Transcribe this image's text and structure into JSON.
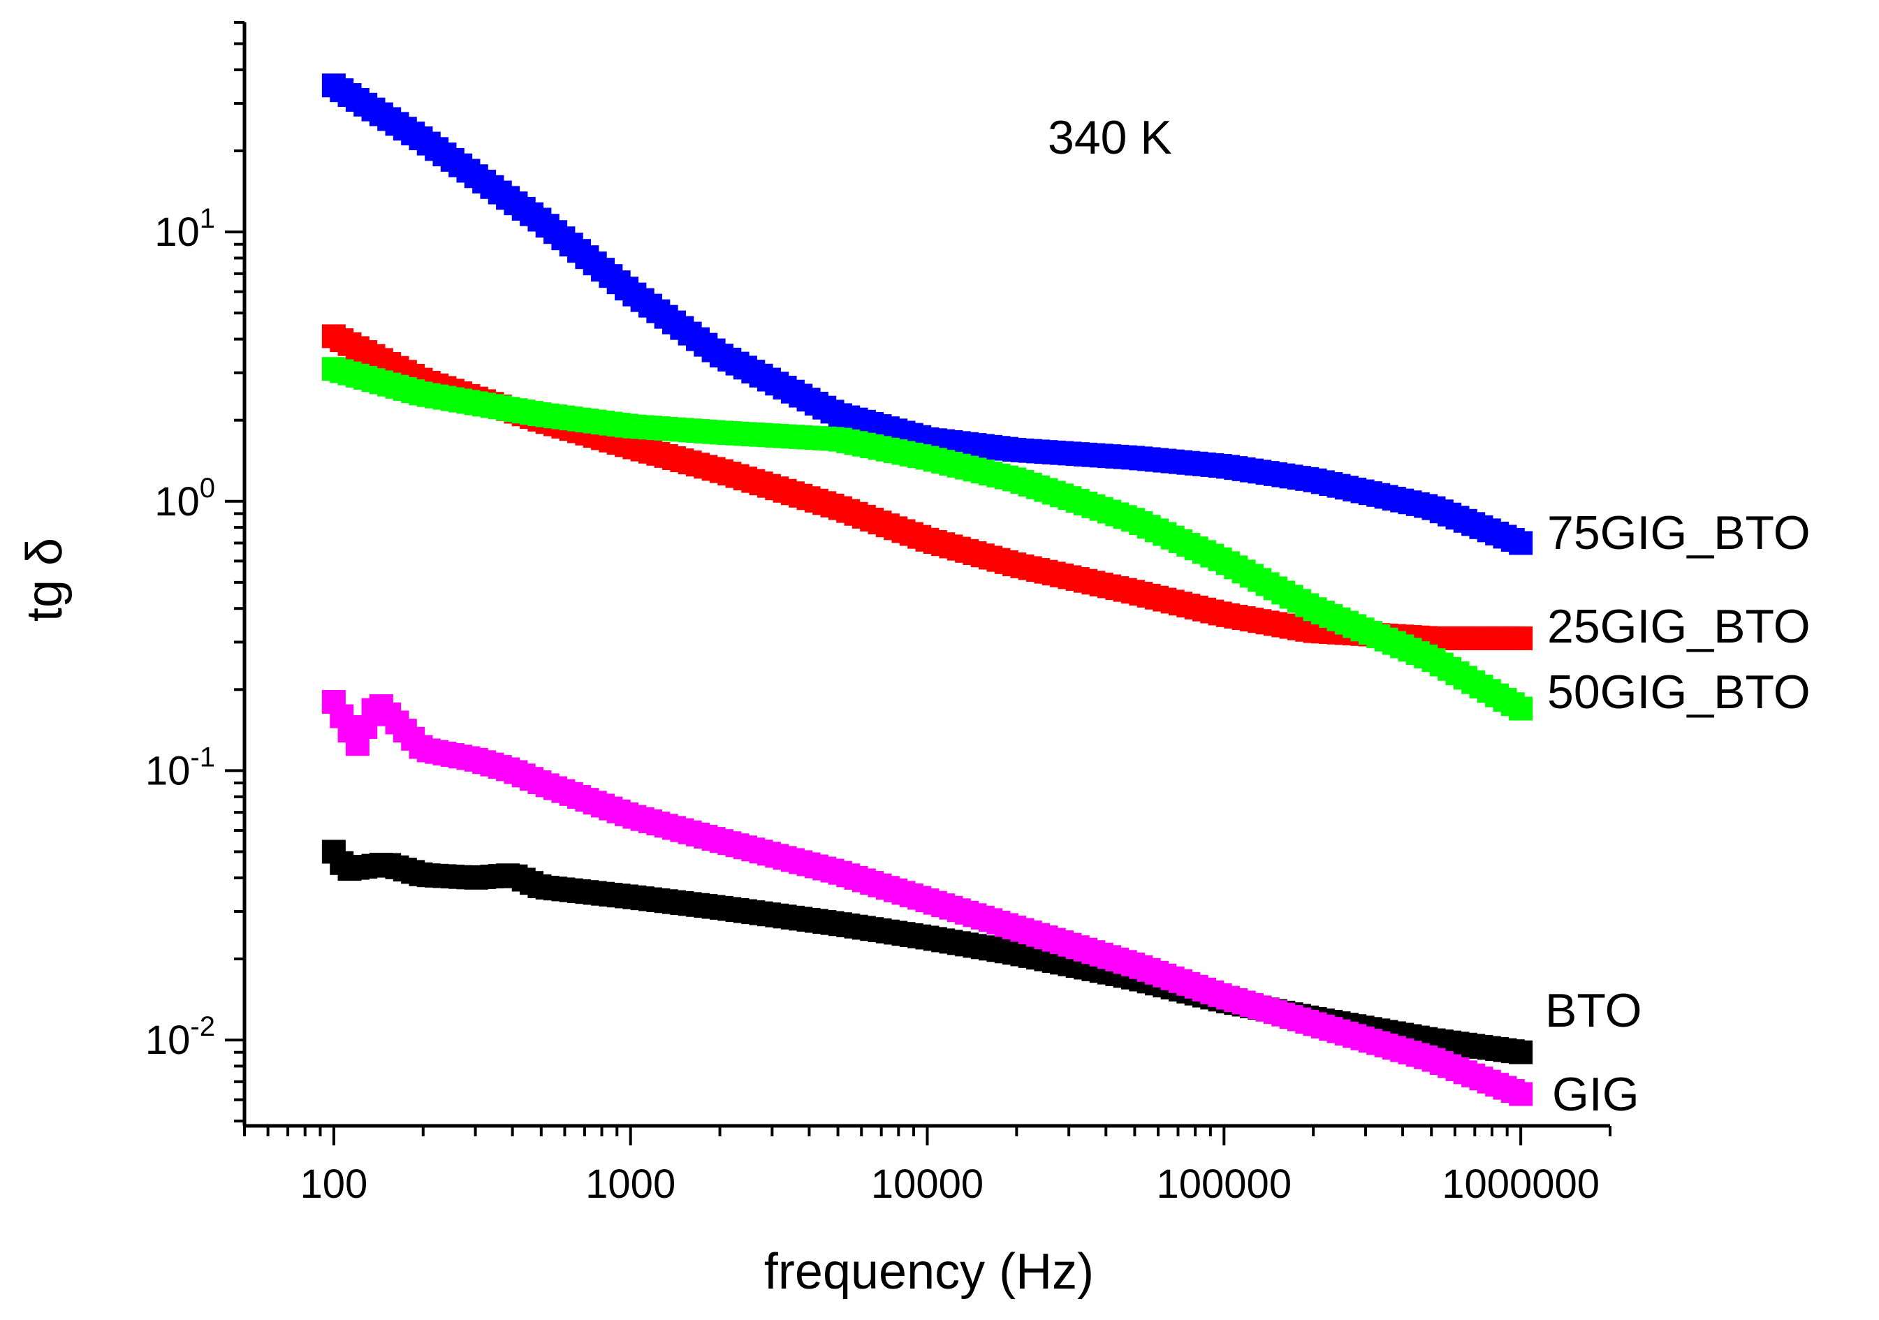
{
  "chart_data": {
    "type": "scatter",
    "title": "",
    "annotation": "340 K",
    "xlabel": "frequency (Hz)",
    "ylabel": "tg δ",
    "x_scale": "log",
    "y_scale": "log",
    "xlim": [
      50,
      2000000
    ],
    "ylim": [
      0.0048,
      60
    ],
    "grid": false,
    "legend": "none (series labelled at right end)",
    "x_ticks": [
      {
        "value": 100,
        "label": "100"
      },
      {
        "value": 1000,
        "label": "1000"
      },
      {
        "value": 10000,
        "label": "10000"
      },
      {
        "value": 100000,
        "label": "100000"
      },
      {
        "value": 1000000,
        "label": "1000000"
      }
    ],
    "y_ticks": [
      {
        "value": 0.01,
        "base": "10",
        "exp": "-2"
      },
      {
        "value": 0.1,
        "base": "10",
        "exp": "-1"
      },
      {
        "value": 1,
        "base": "10",
        "exp": "0"
      },
      {
        "value": 10,
        "base": "10",
        "exp": "1"
      }
    ],
    "series": [
      {
        "name": "75GIG_BTO",
        "label": "75GIG_BTO",
        "color": "#0000ff",
        "points": [
          [
            100,
            35
          ],
          [
            200,
            22
          ],
          [
            500,
            11
          ],
          [
            1000,
            6
          ],
          [
            2000,
            3.5
          ],
          [
            5000,
            2.1
          ],
          [
            10000,
            1.7
          ],
          [
            20000,
            1.55
          ],
          [
            50000,
            1.45
          ],
          [
            100000,
            1.35
          ],
          [
            200000,
            1.2
          ],
          [
            500000,
            0.95
          ],
          [
            1000000,
            0.7
          ]
        ]
      },
      {
        "name": "25GIG_BTO",
        "label": "25GIG_BTO",
        "color": "#ff0000",
        "points": [
          [
            100,
            4.1
          ],
          [
            200,
            2.8
          ],
          [
            500,
            2.0
          ],
          [
            1000,
            1.6
          ],
          [
            2000,
            1.3
          ],
          [
            5000,
            0.95
          ],
          [
            10000,
            0.72
          ],
          [
            20000,
            0.58
          ],
          [
            50000,
            0.46
          ],
          [
            100000,
            0.38
          ],
          [
            200000,
            0.33
          ],
          [
            500000,
            0.31
          ],
          [
            1000000,
            0.31
          ]
        ]
      },
      {
        "name": "50GIG_BTO",
        "label": "50GIG_BTO",
        "color": "#00ff00",
        "points": [
          [
            100,
            3.1
          ],
          [
            200,
            2.5
          ],
          [
            500,
            2.1
          ],
          [
            1000,
            1.9
          ],
          [
            2000,
            1.8
          ],
          [
            5000,
            1.7
          ],
          [
            10000,
            1.45
          ],
          [
            20000,
            1.2
          ],
          [
            50000,
            0.85
          ],
          [
            100000,
            0.6
          ],
          [
            200000,
            0.4
          ],
          [
            500000,
            0.26
          ],
          [
            1000000,
            0.17
          ]
        ]
      },
      {
        "name": "BTO",
        "label": "BTO",
        "color": "#000000",
        "points": [
          [
            100,
            0.05
          ],
          [
            110,
            0.043
          ],
          [
            150,
            0.045
          ],
          [
            200,
            0.041
          ],
          [
            300,
            0.04
          ],
          [
            400,
            0.041
          ],
          [
            500,
            0.037
          ],
          [
            1000,
            0.034
          ],
          [
            2000,
            0.031
          ],
          [
            5000,
            0.027
          ],
          [
            10000,
            0.024
          ],
          [
            20000,
            0.021
          ],
          [
            50000,
            0.017
          ],
          [
            100000,
            0.014
          ],
          [
            200000,
            0.012
          ],
          [
            500000,
            0.01
          ],
          [
            1000000,
            0.009
          ]
        ]
      },
      {
        "name": "GIG",
        "label": "GIG",
        "color": "#ff00ff",
        "points": [
          [
            100,
            0.18
          ],
          [
            120,
            0.125
          ],
          [
            140,
            0.18
          ],
          [
            200,
            0.12
          ],
          [
            300,
            0.11
          ],
          [
            400,
            0.1
          ],
          [
            500,
            0.09
          ],
          [
            1000,
            0.068
          ],
          [
            1500,
            0.06
          ],
          [
            2000,
            0.055
          ],
          [
            5000,
            0.042
          ],
          [
            10000,
            0.033
          ],
          [
            20000,
            0.026
          ],
          [
            50000,
            0.019
          ],
          [
            100000,
            0.0145
          ],
          [
            200000,
            0.0115
          ],
          [
            500000,
            0.0085
          ],
          [
            1000000,
            0.0063
          ]
        ]
      }
    ]
  }
}
